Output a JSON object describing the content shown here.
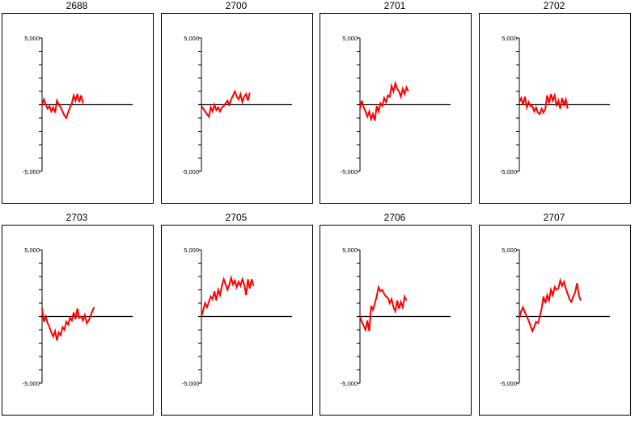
{
  "chart_data": [
    {
      "type": "line",
      "title": "2688",
      "ylim": [
        -5000,
        5000
      ],
      "ytick_labels": [
        "5,000",
        "-5,000"
      ],
      "series": [
        {
          "color": "#ff0000",
          "y": [
            0,
            400,
            0,
            -300,
            -100,
            -500,
            -200,
            -600,
            300,
            0,
            -200,
            -500,
            -800,
            -1000,
            -600,
            -200,
            100,
            700,
            300,
            800,
            200,
            700,
            100
          ]
        }
      ]
    },
    {
      "type": "line",
      "title": "2700",
      "ylim": [
        -5000,
        5000
      ],
      "ytick_labels": [
        "5,000",
        "-5,000"
      ],
      "series": [
        {
          "color": "#ff0000",
          "y": [
            -100,
            -300,
            -500,
            -700,
            -900,
            -200,
            -500,
            0,
            -400,
            -200,
            -500,
            -200,
            -100,
            100,
            300,
            0,
            400,
            700,
            1000,
            600,
            400,
            800,
            200,
            600,
            800,
            300,
            900
          ]
        }
      ]
    },
    {
      "type": "line",
      "title": "2701",
      "ylim": [
        -5000,
        5000
      ],
      "ytick_labels": [
        "5,000",
        "-5,000"
      ],
      "series": [
        {
          "color": "#ff0000",
          "y": [
            -300,
            300,
            -200,
            -500,
            -900,
            -500,
            -1100,
            -700,
            -1200,
            -100,
            -500,
            100,
            -100,
            500,
            200,
            700,
            600,
            1400,
            1000,
            1600,
            1200,
            1000,
            600,
            1200,
            800,
            1300,
            1000
          ]
        }
      ]
    },
    {
      "type": "line",
      "title": "2702",
      "ylim": [
        -5000,
        5000
      ],
      "ytick_labels": [
        "5,000",
        "-5,000"
      ],
      "series": [
        {
          "color": "#ff0000",
          "y": [
            200,
            500,
            0,
            600,
            -200,
            200,
            -100,
            -100,
            -500,
            -200,
            -600,
            -700,
            -300,
            -600,
            -300,
            700,
            100,
            800,
            300,
            700,
            -100,
            300,
            -300,
            500,
            0,
            400,
            -300
          ]
        }
      ]
    },
    {
      "type": "line",
      "title": "2703",
      "ylim": [
        -5000,
        5000
      ],
      "ytick_labels": [
        "5,000",
        "-5,000"
      ],
      "series": [
        {
          "color": "#ff0000",
          "y": [
            600,
            -400,
            0,
            -500,
            -800,
            -1200,
            -1500,
            -1100,
            -1800,
            -1200,
            -1400,
            -800,
            -1000,
            -400,
            -600,
            -100,
            -300,
            300,
            -200,
            600,
            -100,
            0,
            -300,
            100,
            -500,
            -300,
            0,
            400,
            700
          ]
        }
      ]
    },
    {
      "type": "line",
      "title": "2705",
      "ylim": [
        -5000,
        5000
      ],
      "ytick_labels": [
        "5,000",
        "-5,000"
      ],
      "series": [
        {
          "color": "#ff0000",
          "y": [
            0,
            500,
            1000,
            700,
            1100,
            1500,
            1300,
            1900,
            1200,
            2000,
            1600,
            2300,
            2800,
            2400,
            2000,
            2400,
            2900,
            2400,
            2700,
            2200,
            2600,
            2300,
            2800,
            2400,
            1600,
            2800,
            2100,
            2800,
            2300
          ]
        }
      ]
    },
    {
      "type": "line",
      "title": "2706",
      "ylim": [
        -5000,
        5000
      ],
      "ytick_labels": [
        "5,000",
        "-5,000"
      ],
      "series": [
        {
          "color": "#ff0000",
          "y": [
            0,
            -400,
            -700,
            -1000,
            -300,
            -1100,
            800,
            500,
            1000,
            1500,
            2200,
            1900,
            2000,
            1700,
            1500,
            1400,
            1000,
            1300,
            700,
            400,
            1200,
            600,
            1100,
            700,
            1500,
            1200
          ]
        }
      ]
    },
    {
      "type": "line",
      "title": "2707",
      "ylim": [
        -5000,
        5000
      ],
      "ytick_labels": [
        "5,000",
        "-5,000"
      ],
      "series": [
        {
          "color": "#ff0000",
          "y": [
            -100,
            400,
            700,
            300,
            0,
            -300,
            -700,
            -1100,
            -800,
            -400,
            -500,
            0,
            600,
            1500,
            1000,
            1600,
            1200,
            2000,
            1600,
            2200,
            2000,
            2100,
            2700,
            2300,
            2600,
            2100,
            1700,
            1300,
            1100,
            1500,
            1800,
            2500,
            1600,
            1200
          ]
        }
      ]
    }
  ]
}
